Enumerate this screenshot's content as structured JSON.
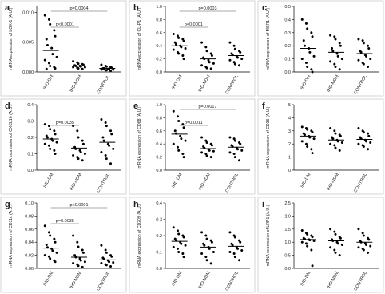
{
  "chart_data": [
    {
      "type": "strip",
      "panel": "a",
      "ylabel": "mRNA expression of LOX-1 (A.U.)",
      "categories": [
        "IHD-DM",
        "IHD-NDM",
        "CONTROL"
      ],
      "groups": [
        [
          0.0095,
          0.0088,
          0.008,
          0.007,
          0.006,
          0.0055,
          0.0045,
          0.004,
          0.003,
          0.0025,
          0.002,
          0.0015,
          0.001,
          0.0008,
          0.0006,
          0.0005
        ],
        [
          0.0018,
          0.0016,
          0.0014,
          0.0013,
          0.0012,
          0.0011,
          0.001,
          0.001,
          0.0009,
          0.0008,
          0.0008,
          0.0007,
          0.0006,
          0.0005
        ],
        [
          0.0012,
          0.001,
          0.0009,
          0.0008,
          0.0007,
          0.0006,
          0.0006,
          0.0005,
          0.0005,
          0.0004,
          0.0004,
          0.0003,
          0.0003,
          0.0002
        ]
      ],
      "means": [
        0.0036,
        0.001,
        0.0006
      ],
      "annotations": [
        "p<0.0001",
        "p=0.0004"
      ],
      "ylim": [
        0,
        0.011
      ],
      "yticks": [
        {
          "value": 0,
          "label": "0.000"
        },
        {
          "value": 0.005,
          "label": "0.005"
        },
        {
          "value": 0.01,
          "label": "0.010"
        }
      ]
    },
    {
      "type": "strip",
      "panel": "b",
      "ylabel": "mRNA expression of CL-P1 (A.U.)",
      "categories": [
        "IHD-DM",
        "IHD-NDM",
        "CONTROL"
      ],
      "groups": [
        [
          0.58,
          0.55,
          0.52,
          0.5,
          0.47,
          0.45,
          0.42,
          0.4,
          0.38,
          0.36,
          0.34,
          0.3,
          0.28,
          0.25,
          0.2
        ],
        [
          0.45,
          0.38,
          0.32,
          0.28,
          0.25,
          0.22,
          0.2,
          0.18,
          0.15,
          0.13,
          0.1,
          0.08,
          0.06,
          0.05
        ],
        [
          0.45,
          0.4,
          0.35,
          0.32,
          0.3,
          0.28,
          0.26,
          0.24,
          0.22,
          0.2,
          0.18,
          0.15,
          0.12,
          0.1
        ]
      ],
      "means": [
        0.4,
        0.2,
        0.25
      ],
      "annotations": [
        "p<0.0001",
        "p=0.0003"
      ],
      "ylim": [
        0,
        1
      ],
      "yticks": [
        {
          "value": 0,
          "label": "0.0"
        },
        0.2,
        0.4,
        0.6,
        0.8,
        {
          "value": 1,
          "label": "1.0"
        }
      ]
    },
    {
      "type": "strip",
      "panel": "c",
      "ylabel": "mRNA expression of MSR1 (A.U.)",
      "categories": [
        "IHD-DM",
        "IHD-NDM",
        "CONTROL"
      ],
      "groups": [
        [
          0.4,
          0.37,
          0.33,
          0.3,
          0.27,
          0.24,
          0.2,
          0.18,
          0.15,
          0.12,
          0.1,
          0.07,
          0.04,
          0.02,
          0.0
        ],
        [
          0.28,
          0.27,
          0.25,
          0.22,
          0.2,
          0.18,
          0.16,
          0.14,
          0.12,
          0.1,
          0.08,
          0.06,
          0.04,
          0.02
        ],
        [
          0.25,
          0.24,
          0.22,
          0.2,
          0.18,
          0.16,
          0.15,
          0.13,
          0.12,
          0.1,
          0.09,
          0.07,
          0.06,
          0.04
        ]
      ],
      "means": [
        0.18,
        0.15,
        0.14
      ],
      "annotations": [],
      "ylim": [
        0,
        0.5
      ],
      "yticks": [
        {
          "value": 0,
          "label": "0.0"
        },
        0.1,
        0.2,
        0.3,
        0.4,
        0.5
      ]
    },
    {
      "type": "strip",
      "panel": "d",
      "ylabel": "mRNA expression of CXCL16 (A.U.)",
      "categories": [
        "IHD-DM",
        "IHD-NDM",
        "CONTROL"
      ],
      "groups": [
        [
          0.28,
          0.27,
          0.25,
          0.24,
          0.22,
          0.21,
          0.2,
          0.19,
          0.18,
          0.17,
          0.16,
          0.15,
          0.13,
          0.12,
          0.1
        ],
        [
          0.27,
          0.24,
          0.2,
          0.18,
          0.16,
          0.14,
          0.13,
          0.12,
          0.11,
          0.1,
          0.09,
          0.08,
          0.07,
          0.06
        ],
        [
          0.31,
          0.29,
          0.27,
          0.24,
          0.22,
          0.2,
          0.18,
          0.16,
          0.15,
          0.13,
          0.11,
          0.09,
          0.07,
          0.04
        ]
      ],
      "means": [
        0.19,
        0.135,
        0.17
      ],
      "annotations": [
        "p=0.0035"
      ],
      "ylim": [
        0,
        0.4
      ],
      "yticks": [
        {
          "value": 0,
          "label": "0.0"
        },
        0.1,
        0.2,
        0.3,
        0.4
      ]
    },
    {
      "type": "strip",
      "panel": "e",
      "ylabel": "mRNA expression of CD68 (A.U.)",
      "categories": [
        "IHD-DM",
        "IHD-NDM",
        "CONTROL"
      ],
      "groups": [
        [
          0.9,
          0.82,
          0.75,
          0.7,
          0.65,
          0.6,
          0.56,
          0.52,
          0.48,
          0.45,
          0.4,
          0.35,
          0.3,
          0.25,
          0.2
        ],
        [
          0.5,
          0.45,
          0.42,
          0.4,
          0.38,
          0.36,
          0.34,
          0.32,
          0.3,
          0.29,
          0.27,
          0.25,
          0.22,
          0.2
        ],
        [
          0.5,
          0.48,
          0.45,
          0.42,
          0.4,
          0.38,
          0.36,
          0.34,
          0.32,
          0.3,
          0.27,
          0.25,
          0.2,
          0.15
        ]
      ],
      "means": [
        0.55,
        0.33,
        0.35
      ],
      "annotations": [
        "p=0.0011",
        "p=0.0017"
      ],
      "ylim": [
        0,
        1
      ],
      "yticks": [
        {
          "value": 0,
          "label": "0.0"
        },
        0.2,
        0.4,
        0.6,
        0.8,
        {
          "value": 1,
          "label": "1.0"
        }
      ]
    },
    {
      "type": "strip",
      "panel": "f",
      "ylabel": "mRNA expression of CD36 (A.U.)",
      "categories": [
        "IHD-DM",
        "IHD-NDM",
        "CONTROL"
      ],
      "groups": [
        [
          3.3,
          3.2,
          3.1,
          3.0,
          2.9,
          2.8,
          2.7,
          2.6,
          2.5,
          2.4,
          2.2,
          2.0,
          1.8,
          1.6,
          1.3
        ],
        [
          3.2,
          3.0,
          2.8,
          2.7,
          2.6,
          2.5,
          2.4,
          2.3,
          2.2,
          2.1,
          2.0,
          1.9,
          1.7,
          1.5
        ],
        [
          3.2,
          3.0,
          2.9,
          2.8,
          2.6,
          2.5,
          2.4,
          2.3,
          2.2,
          2.1,
          2.0,
          1.9,
          1.8,
          1.6
        ]
      ],
      "means": [
        2.6,
        2.3,
        2.35
      ],
      "annotations": [],
      "ylim": [
        0,
        5
      ],
      "yticks": [
        0,
        1,
        2,
        3,
        4,
        5
      ]
    },
    {
      "type": "strip",
      "panel": "g",
      "ylabel": "mRNA expression of CD11c (A.U.)",
      "categories": [
        "IHD-DM",
        "IHD-NDM",
        "CONTROL"
      ],
      "groups": [
        [
          0.065,
          0.055,
          0.05,
          0.045,
          0.04,
          0.036,
          0.032,
          0.03,
          0.027,
          0.024,
          0.02,
          0.018,
          0.015,
          0.012,
          0.01
        ],
        [
          0.05,
          0.04,
          0.033,
          0.028,
          0.024,
          0.02,
          0.017,
          0.015,
          0.012,
          0.01,
          0.008,
          0.006,
          0.004,
          0.002
        ],
        [
          0.035,
          0.028,
          0.024,
          0.02,
          0.018,
          0.016,
          0.014,
          0.012,
          0.01,
          0.009,
          0.008,
          0.006,
          0.005,
          0.003
        ]
      ],
      "means": [
        0.031,
        0.017,
        0.013
      ],
      "annotations": [
        "p=0.0035",
        "p<0.0001"
      ],
      "ylim": [
        0,
        0.1
      ],
      "yticks": [
        {
          "value": 0,
          "label": "0.00"
        },
        0.02,
        0.04,
        0.06,
        0.08,
        {
          "value": 0.1,
          "label": "0.10"
        }
      ]
    },
    {
      "type": "strip",
      "panel": "h",
      "ylabel": "mRNA expression of CD209 (A.U.)",
      "categories": [
        "IHD-DM",
        "IHD-NDM",
        "CONTROL"
      ],
      "groups": [
        [
          0.25,
          0.23,
          0.21,
          0.2,
          0.19,
          0.18,
          0.17,
          0.16,
          0.15,
          0.14,
          0.13,
          0.12,
          0.1,
          0.09,
          0.07
        ],
        [
          0.22,
          0.2,
          0.18,
          0.17,
          0.16,
          0.15,
          0.14,
          0.13,
          0.12,
          0.1,
          0.09,
          0.07,
          0.05,
          0.03
        ],
        [
          0.22,
          0.2,
          0.19,
          0.17,
          0.16,
          0.15,
          0.14,
          0.13,
          0.12,
          0.11,
          0.1,
          0.09,
          0.07,
          0.05
        ]
      ],
      "means": [
        0.165,
        0.13,
        0.135
      ],
      "annotations": [],
      "ylim": [
        0,
        0.4
      ],
      "yticks": [
        {
          "value": 0,
          "label": "0.0"
        },
        0.1,
        0.2,
        0.3,
        0.4
      ]
    },
    {
      "type": "strip",
      "panel": "i",
      "ylabel": "mRNA expression of LRP1 (A.U.)",
      "categories": [
        "IHD-DM",
        "IHD-NDM",
        "CONTROL"
      ],
      "groups": [
        [
          1.45,
          1.35,
          1.3,
          1.25,
          1.2,
          1.15,
          1.12,
          1.1,
          1.08,
          1.05,
          1.0,
          0.95,
          0.85,
          0.7,
          0.1
        ],
        [
          1.5,
          1.4,
          1.3,
          1.2,
          1.15,
          1.1,
          1.05,
          1.0,
          0.95,
          0.9,
          0.8,
          0.7,
          0.6,
          0.5
        ],
        [
          1.5,
          1.35,
          1.25,
          1.15,
          1.1,
          1.05,
          1.0,
          0.95,
          0.9,
          0.85,
          0.8,
          0.75,
          0.7,
          0.6
        ]
      ],
      "means": [
        1.1,
        1.05,
        1.0
      ],
      "annotations": [],
      "ylim": [
        0,
        2.5
      ],
      "yticks": [
        {
          "value": 0,
          "label": "0.0"
        },
        0.5,
        {
          "value": 1,
          "label": "1.0"
        },
        1.5,
        {
          "value": 2,
          "label": "2.0"
        },
        2.5
      ]
    }
  ]
}
